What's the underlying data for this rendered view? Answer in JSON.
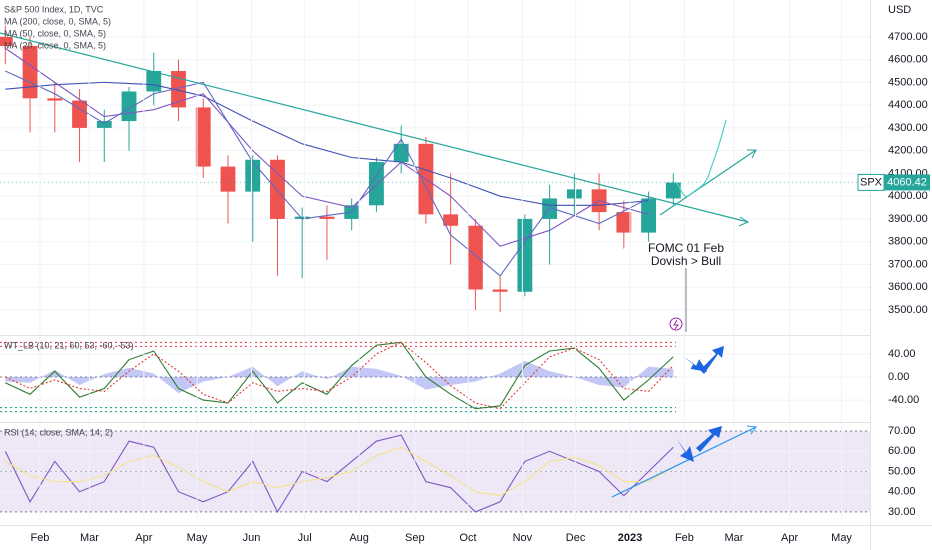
{
  "chart_data": [
    {
      "type": "candlestick",
      "title": "S&P 500 Index, 1D, TVC",
      "y_unit": "USD",
      "symbol": "SPX",
      "last_value": 4060.42,
      "last_color": "#26a69a",
      "annotations": [
        "FOMC 01 Feb",
        "Dovish > Bull"
      ],
      "up_color": "#26a69a",
      "down_color": "#ef5350",
      "x": [
        1.5,
        3.5,
        5.5,
        7.5,
        9.5,
        11.5,
        13.5,
        15.5,
        17.5,
        19.5,
        21.5,
        23.5,
        25.5,
        27.5,
        29.5,
        31.5,
        33.5,
        35.5,
        37.5,
        39.5,
        41.5,
        43.5,
        45.5,
        47.5,
        49.5,
        51.5,
        53.5,
        55.5
      ],
      "open": [
        4700,
        4660,
        4430,
        4420,
        4300,
        4330,
        4460,
        4550,
        4390,
        4130,
        4020,
        4160,
        3900,
        3910,
        3900,
        3960,
        4150,
        4230,
        3920,
        3870,
        3590,
        3580,
        3900,
        3990,
        4030,
        3930,
        3840,
        3990
      ],
      "high": [
        4750,
        4700,
        4500,
        4470,
        4380,
        4480,
        4630,
        4600,
        4430,
        4180,
        4180,
        4180,
        3950,
        3960,
        3990,
        4170,
        4310,
        4260,
        4100,
        3900,
        3650,
        3920,
        4050,
        4100,
        4100,
        3980,
        4020,
        4100
      ],
      "low": [
        4580,
        4280,
        4280,
        4150,
        4150,
        4200,
        4400,
        4330,
        4080,
        3880,
        3800,
        3650,
        3640,
        3720,
        3850,
        3930,
        4100,
        3880,
        3700,
        3500,
        3490,
        3560,
        3700,
        3920,
        3850,
        3770,
        3800,
        3960
      ],
      "close": [
        4660,
        4430,
        4420,
        4300,
        4330,
        4460,
        4550,
        4390,
        4130,
        4020,
        4160,
        3900,
        3910,
        3900,
        3960,
        4150,
        4230,
        3920,
        3870,
        3590,
        3580,
        3900,
        3990,
        4030,
        3930,
        3840,
        3990,
        4060
      ],
      "series": [
        {
          "name": "MA (200, close, 0, SMA, 5)",
          "color": "#3f51b5",
          "x": [
            1.5,
            5.5,
            9.5,
            13.5,
            17.5,
            21.5,
            25.5,
            29.5,
            33.5,
            37.5,
            41.5,
            45.5,
            49.5,
            53.5
          ],
          "values": [
            4470,
            4490,
            4500,
            4490,
            4440,
            4330,
            4230,
            4170,
            4150,
            4080,
            4000,
            3960,
            3960,
            3980
          ]
        },
        {
          "name": "MA (50, close, 0, SMA, 5)",
          "color": "#7e57c2",
          "x": [
            1.5,
            5.5,
            9.5,
            13.5,
            17.5,
            21.5,
            25.5,
            29.5,
            33.5,
            37.5,
            41.5,
            45.5,
            49.5,
            53.5
          ],
          "values": [
            4650,
            4500,
            4350,
            4380,
            4450,
            4200,
            4000,
            3950,
            4150,
            4000,
            3780,
            3850,
            3980,
            3920
          ]
        },
        {
          "name": "MA (20, close, 0, SMA, 5)",
          "color": "#5c6bc0",
          "x": [
            1.5,
            5.5,
            9.5,
            13.5,
            17.5,
            21.5,
            25.5,
            29.5,
            33.5,
            37.5,
            41.5,
            45.5,
            49.5,
            53.5
          ],
          "values": [
            4550,
            4450,
            4320,
            4450,
            4500,
            4150,
            3900,
            3930,
            4250,
            3830,
            3650,
            3950,
            3880,
            3990
          ]
        }
      ],
      "xlim": [
        1.07,
        71.4
      ],
      "ylim": [
        3390,
        4862
      ],
      "yticks": [
        {
          "value": 3500,
          "label": "3500.00"
        },
        {
          "value": 3600,
          "label": "3600.00"
        },
        {
          "value": 3700,
          "label": "3700.00"
        },
        {
          "value": 3800,
          "label": "3800.00"
        },
        {
          "value": 3900,
          "label": "3900.00"
        },
        {
          "value": 4000,
          "label": "4000.00"
        },
        {
          "value": 4100,
          "label": "4100.00"
        },
        {
          "value": 4200,
          "label": "4200.00"
        },
        {
          "value": 4300,
          "label": "4300.00"
        },
        {
          "value": 4400,
          "label": "4400.00"
        },
        {
          "value": 4500,
          "label": "4500.00"
        },
        {
          "value": 4600,
          "label": "4600.00"
        },
        {
          "value": 4700,
          "label": "4700.00"
        }
      ]
    },
    {
      "type": "line",
      "title": "WT_LB (10, 21, 60, 53, -60, -53)",
      "x": [
        1.5,
        3.5,
        5.5,
        7.5,
        9.5,
        11.5,
        13.5,
        15.5,
        17.5,
        19.5,
        21.5,
        23.5,
        25.5,
        27.5,
        29.5,
        31.5,
        33.5,
        35.5,
        37.5,
        39.5,
        41.5,
        43.5,
        45.5,
        47.5,
        49.5,
        51.5,
        53.5,
        55.5
      ],
      "series": [
        {
          "color": "#2e7d32",
          "dash": false,
          "values": [
            -10,
            -30,
            10,
            -35,
            -20,
            30,
            45,
            -20,
            -40,
            -45,
            10,
            -45,
            -10,
            -30,
            20,
            55,
            60,
            0,
            -30,
            -55,
            -50,
            20,
            45,
            50,
            15,
            -40,
            -5,
            35
          ]
        },
        {
          "color": "#e53935",
          "dash": true,
          "values": [
            0,
            -20,
            -5,
            -20,
            -25,
            10,
            40,
            10,
            -30,
            -45,
            -10,
            -25,
            -20,
            -25,
            0,
            40,
            60,
            25,
            -15,
            -45,
            -55,
            -10,
            35,
            50,
            30,
            -20,
            -25,
            20
          ]
        }
      ],
      "area": {
        "color": "#7b83eb",
        "values": [
          -8,
          -10,
          12,
          -14,
          5,
          16,
          6,
          -28,
          -8,
          0,
          18,
          -16,
          10,
          -4,
          18,
          14,
          2,
          -22,
          -14,
          -8,
          6,
          28,
          10,
          0,
          -14,
          -18,
          18,
          14
        ]
      },
      "hlines": [
        {
          "value": 60,
          "color": "#f23645"
        },
        {
          "value": 53,
          "color": "#f23645"
        },
        {
          "value": 0,
          "color": "#787b86"
        },
        {
          "value": -53,
          "color": "#089981"
        },
        {
          "value": -60,
          "color": "#089981"
        }
      ],
      "xlim": [
        1.07,
        71.4
      ],
      "ylim": [
        -78,
        71
      ],
      "yticks": [
        {
          "value": 40,
          "label": "40.00"
        },
        {
          "value": 0,
          "label": "0.00"
        },
        {
          "value": -40,
          "label": "-40.00"
        }
      ]
    },
    {
      "type": "line",
      "title": "RSI (14, close, SMA, 14, 2)",
      "x": [
        1.5,
        3.5,
        5.5,
        7.5,
        9.5,
        11.5,
        13.5,
        15.5,
        17.5,
        19.5,
        21.5,
        23.5,
        25.5,
        27.5,
        29.5,
        31.5,
        33.5,
        35.5,
        37.5,
        39.5,
        41.5,
        43.5,
        45.5,
        47.5,
        49.5,
        51.5,
        53.5,
        55.5
      ],
      "series": [
        {
          "color": "#7e57c2",
          "dash": false,
          "values": [
            60,
            35,
            55,
            40,
            45,
            65,
            62,
            40,
            35,
            40,
            55,
            30,
            50,
            45,
            55,
            65,
            68,
            45,
            42,
            30,
            35,
            55,
            60,
            55,
            50,
            38,
            50,
            62
          ]
        },
        {
          "color": "#f5e28a",
          "dash": false,
          "values": [
            55,
            48,
            45,
            45,
            48,
            55,
            58,
            52,
            45,
            40,
            45,
            42,
            45,
            47,
            50,
            58,
            62,
            55,
            48,
            40,
            38,
            45,
            55,
            57,
            53,
            45,
            45,
            52
          ]
        }
      ],
      "band": [
        30,
        70
      ],
      "band_color": "#ede7f6",
      "hlines": [
        {
          "value": 70,
          "color": "#787b86"
        },
        {
          "value": 50,
          "color": "#b0b3bd"
        },
        {
          "value": 30,
          "color": "#787b86"
        }
      ],
      "xlim": [
        1.07,
        71.4
      ],
      "ylim": [
        26,
        74
      ],
      "yticks": [
        {
          "value": 30,
          "label": "30.00"
        },
        {
          "value": 40,
          "label": "40.00"
        },
        {
          "value": 50,
          "label": "50.00"
        },
        {
          "value": 60,
          "label": "60.00"
        },
        {
          "value": 70,
          "label": "70.00"
        }
      ],
      "xticks": [
        {
          "value": 4.3,
          "label": "Feb"
        },
        {
          "value": 8.3,
          "label": "Mar"
        },
        {
          "value": 12.7,
          "label": "Apr"
        },
        {
          "value": 17,
          "label": "May"
        },
        {
          "value": 21.4,
          "label": "Jun"
        },
        {
          "value": 25.7,
          "label": "Jul"
        },
        {
          "value": 30.1,
          "label": "Aug"
        },
        {
          "value": 34.6,
          "label": "Sep"
        },
        {
          "value": 38.9,
          "label": "Oct"
        },
        {
          "value": 43.3,
          "label": "Nov"
        },
        {
          "value": 47.6,
          "label": "Dec"
        },
        {
          "value": 52,
          "label": "2023"
        },
        {
          "value": 56.4,
          "label": "Feb"
        },
        {
          "value": 60.4,
          "label": "Mar"
        },
        {
          "value": 64.9,
          "label": "Apr"
        },
        {
          "value": 69.1,
          "label": "May"
        }
      ]
    }
  ]
}
